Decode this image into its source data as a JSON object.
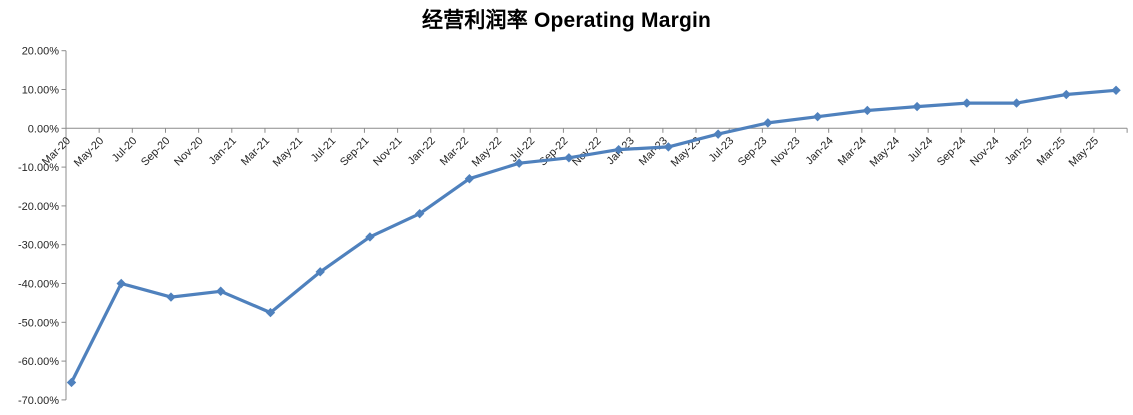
{
  "chart_data": {
    "type": "line",
    "title": "经营利润率 Operating Margin",
    "grid": false,
    "legend_position": "none",
    "axis_color": "#8C8C8C",
    "label_color": "#262626",
    "y_axis": {
      "max": 20,
      "min": -70,
      "step": 10,
      "tick_labels": [
        "20.00%",
        "10.00%",
        "0.00%",
        "-10.00%",
        "-20.00%",
        "-30.00%",
        "-40.00%",
        "-50.00%",
        "-60.00%",
        "-70.00%"
      ]
    },
    "x_axis": {
      "months_between_ticks": 2,
      "tick_labels": [
        "Mar-20",
        "May-20",
        "Jul-20",
        "Sep-20",
        "Nov-20",
        "Jan-21",
        "Mar-21",
        "May-21",
        "Jul-21",
        "Sep-21",
        "Nov-21",
        "Jan-22",
        "Mar-22",
        "May-22",
        "Jul-22",
        "Sep-22",
        "Nov-22",
        "Jan-23",
        "Mar-23",
        "May-23",
        "Jul-23",
        "Sep-23",
        "Nov-23",
        "Jan-24",
        "Mar-24",
        "May-24",
        "Jul-24",
        "Sep-24",
        "Nov-24",
        "Jan-25",
        "Mar-25",
        "May-25"
      ]
    },
    "series": [
      {
        "name": "经营利润率 Operating Margin",
        "color": "#4F81BD",
        "marker": "diamond",
        "points": [
          {
            "period": "Mar-20",
            "month_offset": 0,
            "value": -65.5
          },
          {
            "period": "Jun-20",
            "month_offset": 3,
            "value": -40.0
          },
          {
            "period": "Sep-20",
            "month_offset": 6,
            "value": -43.5
          },
          {
            "period": "Dec-20",
            "month_offset": 9,
            "value": -42.0
          },
          {
            "period": "Mar-21",
            "month_offset": 12,
            "value": -47.5
          },
          {
            "period": "Jun-21",
            "month_offset": 15,
            "value": -37.0
          },
          {
            "period": "Sep-21",
            "month_offset": 18,
            "value": -28.0
          },
          {
            "period": "Dec-21",
            "month_offset": 21,
            "value": -22.0
          },
          {
            "period": "Mar-22",
            "month_offset": 24,
            "value": -13.0
          },
          {
            "period": "Jun-22",
            "month_offset": 27,
            "value": -9.0
          },
          {
            "period": "Sep-22",
            "month_offset": 30,
            "value": -7.6
          },
          {
            "period": "Dec-22",
            "month_offset": 33,
            "value": -5.5
          },
          {
            "period": "Mar-23",
            "month_offset": 36,
            "value": -4.8
          },
          {
            "period": "Jun-23",
            "month_offset": 39,
            "value": -1.5
          },
          {
            "period": "Sep-23",
            "month_offset": 42,
            "value": 1.4
          },
          {
            "period": "Dec-23",
            "month_offset": 45,
            "value": 3.0
          },
          {
            "period": "Mar-24",
            "month_offset": 48,
            "value": 4.6
          },
          {
            "period": "Jun-24",
            "month_offset": 51,
            "value": 5.6
          },
          {
            "period": "Sep-24",
            "month_offset": 54,
            "value": 6.5
          },
          {
            "period": "Dec-24",
            "month_offset": 57,
            "value": 6.5
          },
          {
            "period": "Mar-25",
            "month_offset": 60,
            "value": 8.7
          },
          {
            "period": "Jun-25",
            "month_offset": 63,
            "value": 9.8
          }
        ]
      }
    ]
  }
}
